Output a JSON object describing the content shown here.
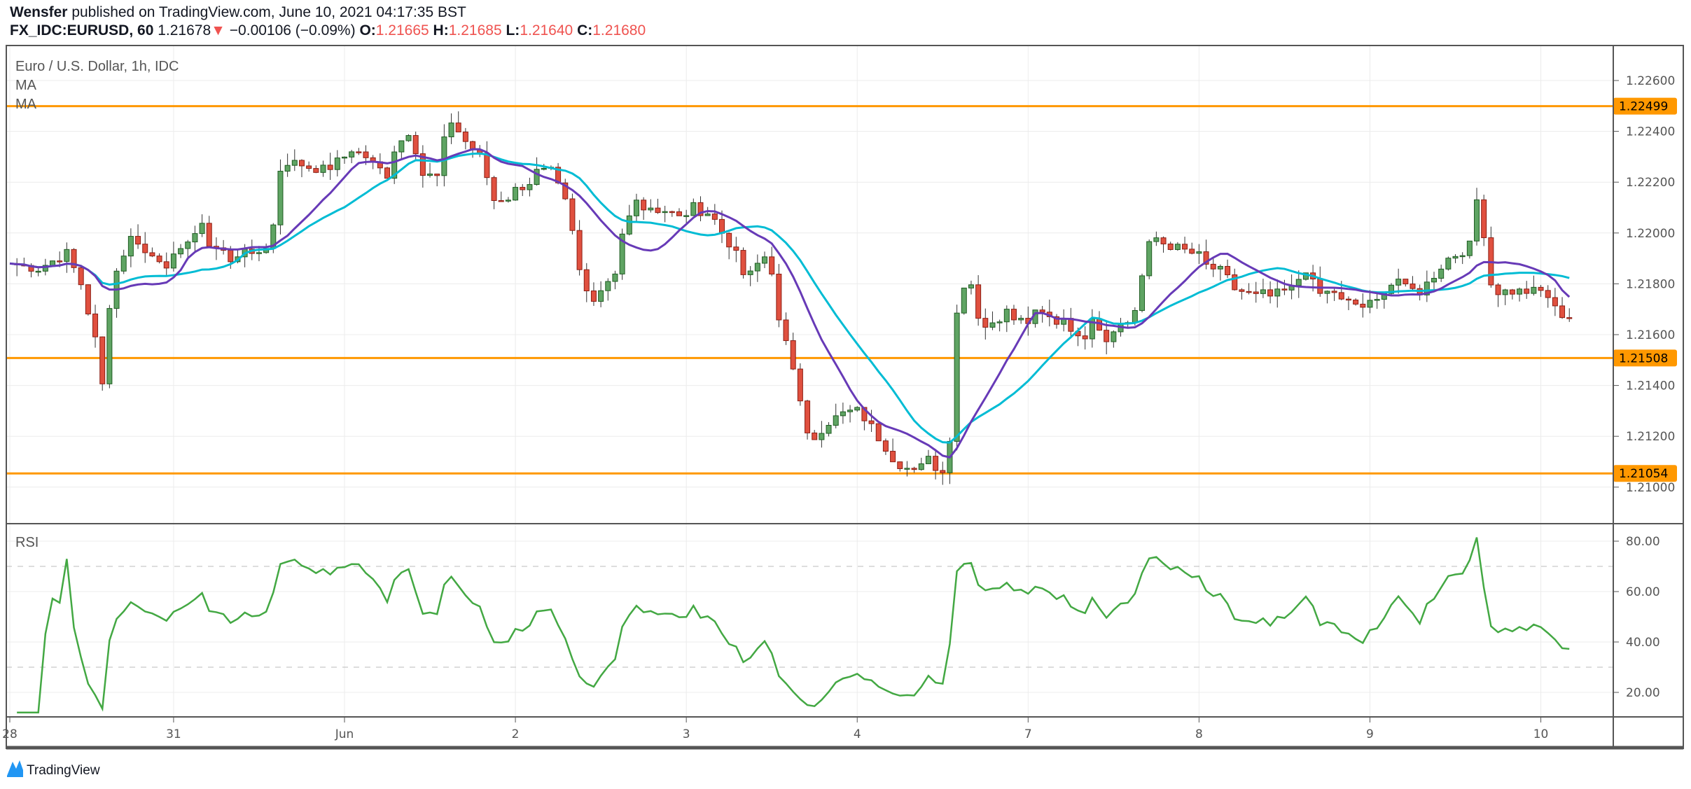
{
  "header": {
    "author": "Wensfer",
    "published": "published on TradingView.com, June 10, 2021 04:17:35 BST",
    "symbol": "FX_IDC:EURUSD, 60",
    "last": "1.21678",
    "arrow": "▼",
    "change": "−0.00106 (−0.09%)",
    "o_label": "O:",
    "o": "1.21665",
    "h_label": "H:",
    "h": "1.21685",
    "l_label": "L:",
    "l": "1.21640",
    "c_label": "C:",
    "c": "1.21680"
  },
  "legend": {
    "title": "Euro / U.S. Dollar, 1h, IDC",
    "ma1": "MA",
    "ma2": "MA",
    "rsi": "RSI"
  },
  "footer": {
    "brand": "TradingView"
  },
  "colors": {
    "up": "#5fa463",
    "down": "#e0503f",
    "level": "#ff9800",
    "ma_fast": "#673ab7",
    "ma_slow": "#00bcd4",
    "rsi": "#43a843",
    "brand": "#2196f3"
  },
  "chart_data": {
    "type": "candlestick",
    "title": "Euro / U.S. Dollar, 1h, IDC",
    "price_ylim": [
      1.2091,
      1.2268
    ],
    "price_ticks": [
      "1.22600",
      "1.22400",
      "1.22200",
      "1.22000",
      "1.21800",
      "1.21600",
      "1.21400",
      "1.21200",
      "1.21000"
    ],
    "levels": [
      {
        "value": 1.22499,
        "label": "1.22499"
      },
      {
        "value": 1.21508,
        "label": "1.21508"
      },
      {
        "value": 1.21054,
        "label": "1.21054"
      }
    ],
    "x_labels": [
      {
        "label": "28",
        "hour": 0
      },
      {
        "label": "31",
        "hour": 23
      },
      {
        "label": "Jun",
        "hour": 47
      },
      {
        "label": "2",
        "hour": 71
      },
      {
        "label": "3",
        "hour": 95
      },
      {
        "label": "4",
        "hour": 119
      },
      {
        "label": "7",
        "hour": 143
      },
      {
        "label": "8",
        "hour": 167
      },
      {
        "label": "9",
        "hour": 191
      },
      {
        "label": "10",
        "hour": 215
      }
    ],
    "close_waypoints": [
      [
        0,
        1.2188
      ],
      [
        4,
        1.2186
      ],
      [
        8,
        1.2192
      ],
      [
        10,
        1.218
      ],
      [
        12,
        1.2158
      ],
      [
        13,
        1.214
      ],
      [
        14,
        1.2172
      ],
      [
        15,
        1.2185
      ],
      [
        16,
        1.2192
      ],
      [
        17,
        1.2198
      ],
      [
        18,
        1.2197
      ],
      [
        19,
        1.2192
      ],
      [
        21,
        1.219
      ],
      [
        22,
        1.2188
      ],
      [
        24,
        1.2192
      ],
      [
        25,
        1.2198
      ],
      [
        27,
        1.2202
      ],
      [
        28,
        1.2196
      ],
      [
        30,
        1.2193
      ],
      [
        31,
        1.2188
      ],
      [
        33,
        1.2195
      ],
      [
        34,
        1.219
      ],
      [
        36,
        1.2195
      ],
      [
        37,
        1.2203
      ],
      [
        38,
        1.2225
      ],
      [
        39,
        1.2228
      ],
      [
        41,
        1.2227
      ],
      [
        42,
        1.2226
      ],
      [
        44,
        1.2225
      ],
      [
        45,
        1.2226
      ],
      [
        47,
        1.223
      ],
      [
        48,
        1.2233
      ],
      [
        50,
        1.223
      ],
      [
        51,
        1.2227
      ],
      [
        53,
        1.2223
      ],
      [
        54,
        1.2233
      ],
      [
        56,
        1.224
      ],
      [
        57,
        1.2233
      ],
      [
        58,
        1.2223
      ],
      [
        60,
        1.2222
      ],
      [
        61,
        1.2236
      ],
      [
        62,
        1.2244
      ],
      [
        63,
        1.224
      ],
      [
        64,
        1.2236
      ],
      [
        66,
        1.223
      ],
      [
        67,
        1.2222
      ],
      [
        68,
        1.2213
      ],
      [
        70,
        1.2214
      ],
      [
        71,
        1.2217
      ],
      [
        73,
        1.222
      ],
      [
        74,
        1.2224
      ],
      [
        76,
        1.2224
      ],
      [
        77,
        1.2218
      ],
      [
        78,
        1.2212
      ],
      [
        79,
        1.22
      ],
      [
        80,
        1.2185
      ],
      [
        81,
        1.2177
      ],
      [
        82,
        1.2175
      ],
      [
        83,
        1.2178
      ],
      [
        85,
        1.2185
      ],
      [
        86,
        1.22
      ],
      [
        87,
        1.2206
      ],
      [
        88,
        1.2212
      ],
      [
        90,
        1.2208
      ],
      [
        91,
        1.221
      ],
      [
        93,
        1.2208
      ],
      [
        94,
        1.2207
      ],
      [
        96,
        1.221
      ],
      [
        97,
        1.2207
      ],
      [
        99,
        1.2205
      ],
      [
        100,
        1.22
      ],
      [
        102,
        1.2192
      ],
      [
        103,
        1.2182
      ],
      [
        105,
        1.219
      ],
      [
        106,
        1.2192
      ],
      [
        107,
        1.2183
      ],
      [
        108,
        1.2165
      ],
      [
        109,
        1.2157
      ],
      [
        110,
        1.2145
      ],
      [
        111,
        1.2135
      ],
      [
        112,
        1.212
      ],
      [
        113,
        1.212
      ],
      [
        114,
        1.2123
      ],
      [
        115,
        1.2126
      ],
      [
        116,
        1.213
      ],
      [
        118,
        1.2129
      ],
      [
        119,
        1.213
      ],
      [
        121,
        1.2125
      ],
      [
        122,
        1.212
      ],
      [
        123,
        1.2115
      ],
      [
        124,
        1.211
      ],
      [
        126,
        1.2108
      ],
      [
        127,
        1.2108
      ],
      [
        128,
        1.211
      ],
      [
        129,
        1.2111
      ],
      [
        130,
        1.2108
      ],
      [
        131,
        1.2107
      ],
      [
        132,
        1.212
      ],
      [
        133,
        1.2168
      ],
      [
        134,
        1.218
      ],
      [
        135,
        1.218
      ],
      [
        136,
        1.2168
      ],
      [
        137,
        1.2163
      ],
      [
        138,
        1.2165
      ],
      [
        139,
        1.2167
      ],
      [
        140,
        1.2169
      ],
      [
        141,
        1.2166
      ],
      [
        143,
        1.2165
      ],
      [
        144,
        1.2168
      ],
      [
        145,
        1.2168
      ],
      [
        147,
        1.2165
      ],
      [
        148,
        1.2167
      ],
      [
        149,
        1.2163
      ],
      [
        150,
        1.2158
      ],
      [
        151,
        1.216
      ],
      [
        152,
        1.2168
      ],
      [
        153,
        1.2163
      ],
      [
        154,
        1.2158
      ],
      [
        155,
        1.2163
      ],
      [
        157,
        1.2165
      ],
      [
        158,
        1.217
      ],
      [
        159,
        1.2183
      ],
      [
        160,
        1.2195
      ],
      [
        161,
        1.2198
      ],
      [
        162,
        1.2196
      ],
      [
        163,
        1.2195
      ],
      [
        165,
        1.2193
      ],
      [
        166,
        1.2192
      ],
      [
        167,
        1.2191
      ],
      [
        168,
        1.2187
      ],
      [
        170,
        1.2185
      ],
      [
        171,
        1.2182
      ],
      [
        172,
        1.2178
      ],
      [
        173,
        1.2177
      ],
      [
        175,
        1.2175
      ],
      [
        176,
        1.2176
      ],
      [
        177,
        1.2175
      ],
      [
        179,
        1.2177
      ],
      [
        180,
        1.2178
      ],
      [
        182,
        1.2186
      ],
      [
        183,
        1.218
      ],
      [
        184,
        1.2176
      ],
      [
        186,
        1.2177
      ],
      [
        187,
        1.2173
      ],
      [
        189,
        1.2172
      ],
      [
        190,
        1.2171
      ],
      [
        192,
        1.2173
      ],
      [
        193,
        1.2178
      ],
      [
        195,
        1.2182
      ],
      [
        196,
        1.2178
      ],
      [
        198,
        1.2177
      ],
      [
        199,
        1.218
      ],
      [
        201,
        1.2187
      ],
      [
        202,
        1.219
      ],
      [
        204,
        1.2193
      ],
      [
        205,
        1.2195
      ],
      [
        206,
        1.2213
      ],
      [
        207,
        1.22
      ],
      [
        208,
        1.218
      ],
      [
        209,
        1.2177
      ],
      [
        211,
        1.2177
      ],
      [
        212,
        1.2177
      ],
      [
        214,
        1.2177
      ],
      [
        215,
        1.2177
      ],
      [
        216,
        1.2175
      ],
      [
        217,
        1.217
      ],
      [
        218,
        1.2168
      ],
      [
        219,
        1.2167
      ]
    ],
    "ma_periods": {
      "fast": 12,
      "slow": 20
    },
    "rsi": {
      "period": 14,
      "ylim": [
        10,
        88
      ],
      "ticks": [
        "80.00",
        "60.00",
        "40.00",
        "20.00"
      ],
      "bands": [
        70,
        30
      ]
    }
  }
}
